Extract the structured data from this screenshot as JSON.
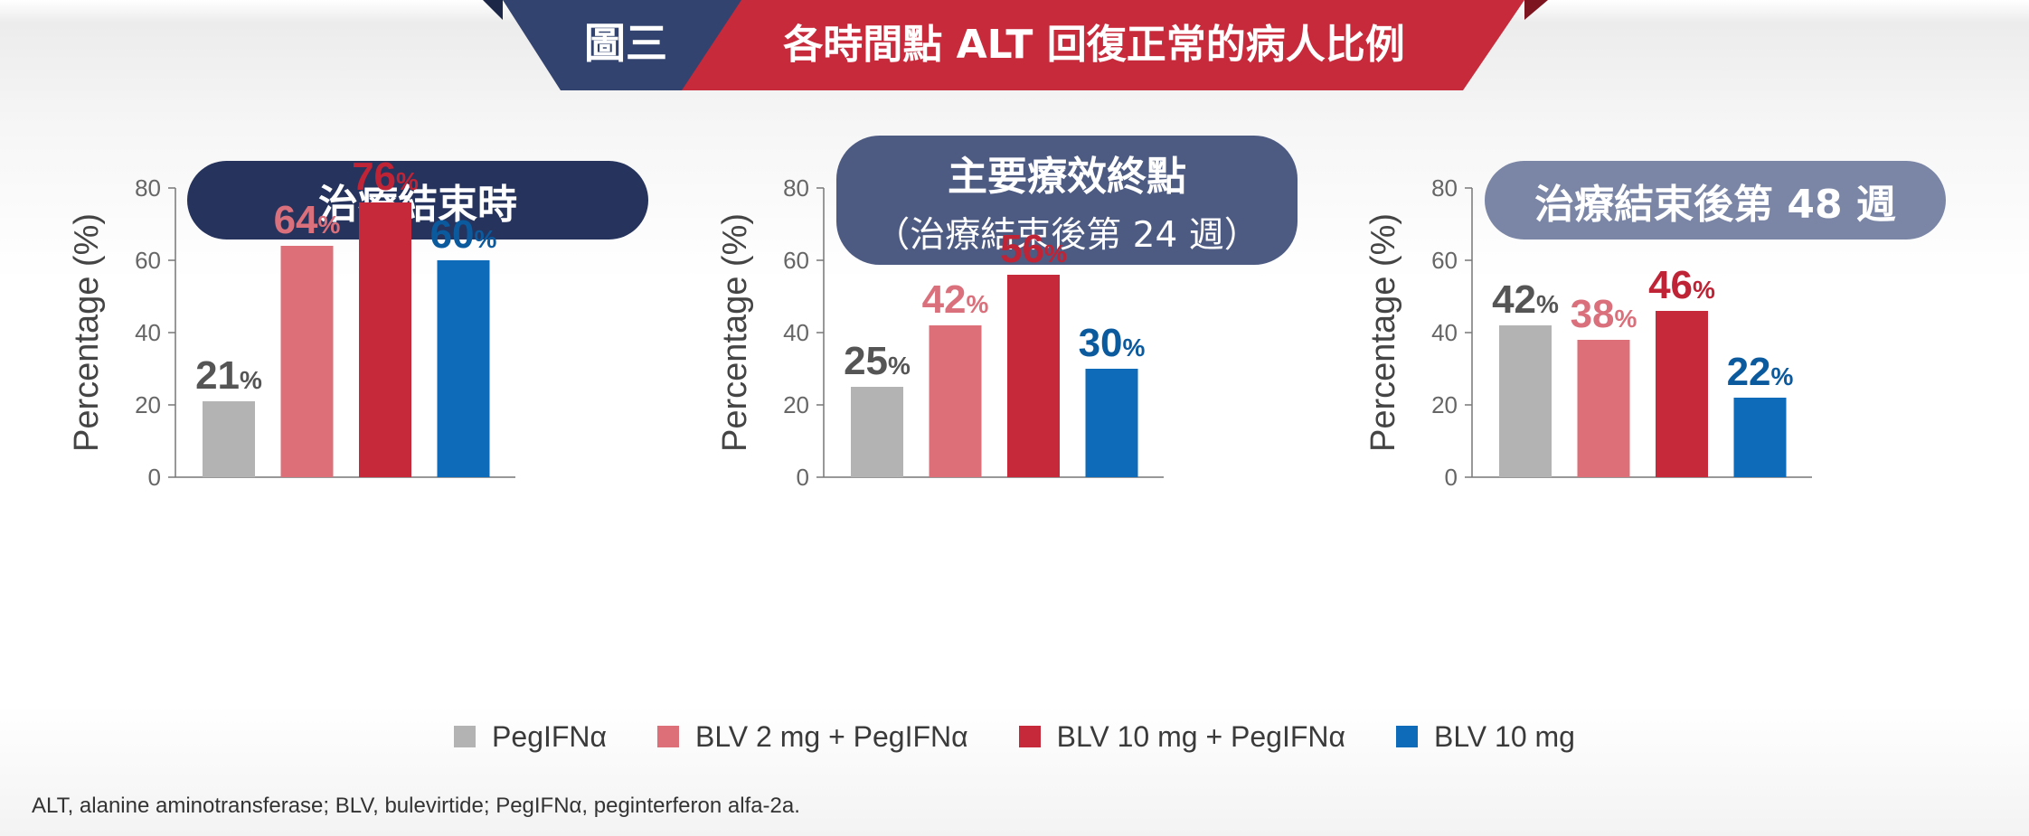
{
  "figure_label": "圖三",
  "figure_title": "各時間點 ALT 回復正常的病人比例",
  "colors": {
    "navy": "#33436f",
    "red": "#c72a3b",
    "grey": "#b3b3b4",
    "pink": "#dd6f78",
    "crimson": "#c62a3a",
    "blue": "#0d6bb9",
    "label_grey": "#555555",
    "label_pink": "#d9707b",
    "label_red": "#be2436",
    "label_blue": "#0c5a9e"
  },
  "panels": [
    {
      "title": "治療結束時",
      "subtitle": ""
    },
    {
      "title": "主要療效終點",
      "subtitle": "（治療結束後第 24 週）"
    },
    {
      "title": "治療結束後第 48 週",
      "subtitle": ""
    }
  ],
  "chart_data": [
    {
      "type": "bar",
      "title": "治療結束時",
      "ylabel": "Percentage (%)",
      "ylim": [
        0,
        80
      ],
      "yticks": [
        "0",
        "20",
        "40",
        "60",
        "80"
      ],
      "categories": [
        "PegIFNα",
        "BLV 2 mg + PegIFNα",
        "BLV 10 mg + PegIFNα",
        "BLV 10 mg"
      ],
      "values": [
        21,
        64,
        76,
        60
      ],
      "data_labels": [
        "21",
        "64",
        "76",
        "60"
      ],
      "unit": "%"
    },
    {
      "type": "bar",
      "title": "主要療效終點（治療結束後第 24 週）",
      "ylabel": "Percentage (%)",
      "ylim": [
        0,
        80
      ],
      "yticks": [
        "0",
        "20",
        "40",
        "60",
        "80"
      ],
      "categories": [
        "PegIFNα",
        "BLV 2 mg + PegIFNα",
        "BLV 10 mg + PegIFNα",
        "BLV 10 mg"
      ],
      "values": [
        25,
        42,
        56,
        30
      ],
      "data_labels": [
        "25",
        "42",
        "56",
        "30"
      ],
      "unit": "%"
    },
    {
      "type": "bar",
      "title": "治療結束後第 48 週",
      "ylabel": "Percentage (%)",
      "ylim": [
        0,
        80
      ],
      "yticks": [
        "0",
        "20",
        "40",
        "60",
        "80"
      ],
      "categories": [
        "PegIFNα",
        "BLV 2 mg + PegIFNα",
        "BLV 10 mg + PegIFNα",
        "BLV 10 mg"
      ],
      "values": [
        42,
        38,
        46,
        22
      ],
      "data_labels": [
        "42",
        "38",
        "46",
        "22"
      ],
      "unit": "%"
    }
  ],
  "legend": [
    {
      "label": "PegIFNα",
      "color": "#b3b3b4"
    },
    {
      "label": "BLV 2 mg + PegIFNα",
      "color": "#dd6f78"
    },
    {
      "label": "BLV 10 mg + PegIFNα",
      "color": "#c62a3a"
    },
    {
      "label": "BLV 10 mg",
      "color": "#0d6bb9"
    }
  ],
  "footnote": "ALT, alanine aminotransferase; BLV, bulevirtide; PegIFNα, peginterferon alfa-2a."
}
